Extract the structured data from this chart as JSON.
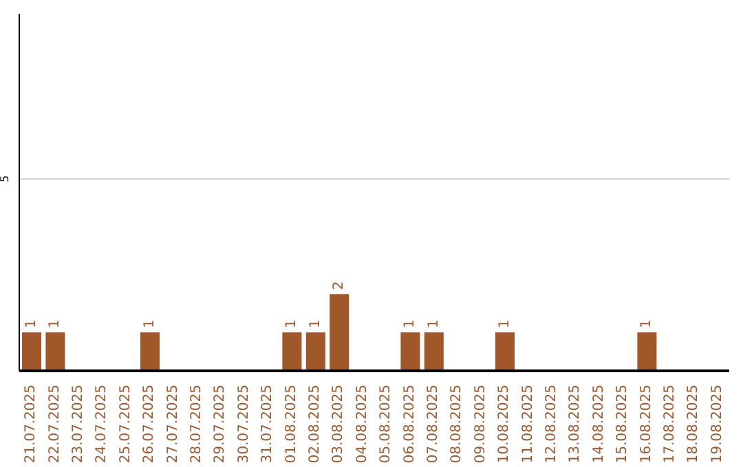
{
  "chart_data": {
    "type": "bar",
    "categories": [
      "21.07.2025",
      "22.07.2025",
      "23.07.2025",
      "24.07.2025",
      "25.07.2025",
      "26.07.2025",
      "27.07.2025",
      "28.07.2025",
      "29.07.2025",
      "30.07.2025",
      "31.07.2025",
      "01.08.2025",
      "02.08.2025",
      "03.08.2025",
      "04.08.2025",
      "05.08.2025",
      "06.08.2025",
      "07.08.2025",
      "08.08.2025",
      "09.08.2025",
      "10.08.2025",
      "11.08.2025",
      "12.08.2025",
      "13.08.2025",
      "14.08.2025",
      "15.08.2025",
      "16.08.2025",
      "17.08.2025",
      "18.08.2025",
      "19.08.2025"
    ],
    "values": [
      1,
      1,
      0,
      0,
      0,
      1,
      0,
      0,
      0,
      0,
      0,
      1,
      1,
      2,
      0,
      0,
      1,
      1,
      0,
      0,
      1,
      0,
      0,
      0,
      0,
      0,
      1,
      0,
      0,
      0
    ],
    "value_labels": [
      "1",
      "1",
      null,
      null,
      null,
      "1",
      null,
      null,
      null,
      null,
      null,
      "1",
      "1",
      "2",
      null,
      null,
      "1",
      "1",
      null,
      null,
      "1",
      null,
      null,
      null,
      null,
      null,
      "1",
      null,
      null,
      null
    ],
    "color": "#a0572a",
    "ylim": [
      0,
      9.3
    ],
    "yticks": [
      5
    ],
    "grid": "y"
  }
}
